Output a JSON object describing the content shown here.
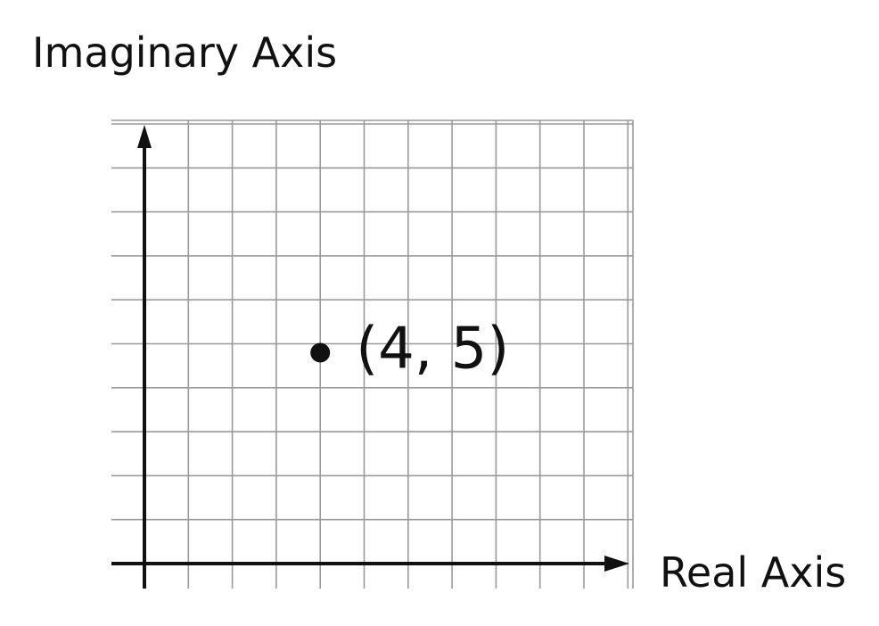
{
  "chart_data": {
    "type": "scatter",
    "title": "",
    "ylabel": "Imaginary Axis",
    "xlabel": "Real Axis",
    "xlim": [
      0,
      11
    ],
    "ylim": [
      0,
      10
    ],
    "grid": true,
    "points": [
      {
        "x": 4,
        "y": 5,
        "label": "(4, 5)"
      }
    ],
    "colors": {
      "axis": "#111111",
      "grid": "#9a9a9a",
      "point": "#111111"
    }
  }
}
